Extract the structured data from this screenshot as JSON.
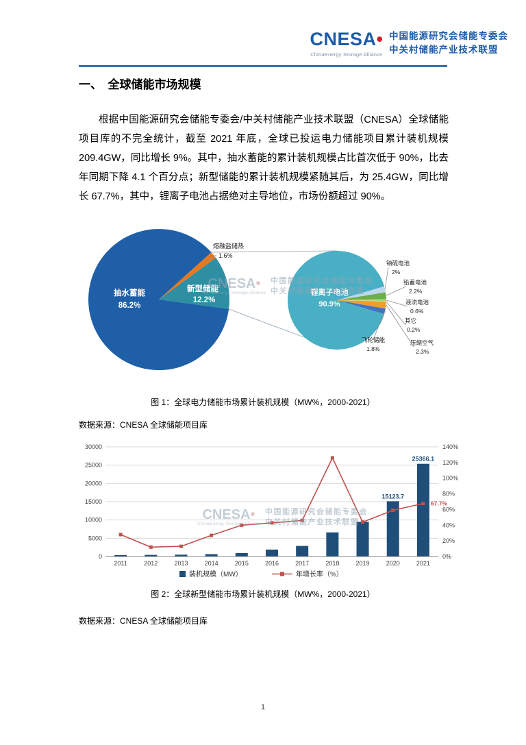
{
  "page": {
    "number": "1"
  },
  "header": {
    "logo_text": "CNESA",
    "logo_dot": "•",
    "logo_subtitle": "ChinaEnergy Storage Alliance",
    "org_line1": "中国能源研究会储能专委会",
    "org_line2": "中关村储能产业技术联盟"
  },
  "watermark": {
    "brand": "CNESA",
    "dot": "•",
    "sub": "ChinaEnergy Storage Alliance",
    "line1": "中国能源研究会储能专委会",
    "line2": "中关村储能产业技术联盟"
  },
  "section": {
    "heading": "一、　全球储能市场规模"
  },
  "body": {
    "paragraph": "根据中国能源研究会储能专委会/中关村储能产业技术联盟（CNESA）全球储能项目库的不完全统计，截至 2021 年底，全球已投运电力储能项目累计装机规模 209.4GW，同比增长 9%。其中，抽水蓄能的累计装机规模占比首次低于 90%，比去年同期下降 4.1 个百分点；新型储能的累计装机规模紧随其后，为 25.4GW，同比增长 67.7%，其中，锂离子电池占据绝对主导地位，市场份额超过 90%。"
  },
  "figure1": {
    "caption": "图 1：全球电力储能市场累计装机规模（MW%，2000-2021）",
    "source": "数据来源：CNESA 全球储能项目库"
  },
  "figure2": {
    "caption": "图 2：全球新型储能市场累计装机规模（MW%，2000-2021）",
    "source": "数据来源：CNESA 全球储能项目库"
  },
  "chart_data": [
    {
      "type": "pie",
      "variant": "pie-of-pie",
      "title": "全球电力储能市场累计装机规模（MW%，2000-2021）",
      "main_pie": [
        {
          "label": "熔融盐储热",
          "pct": "1.6%",
          "value": 1.6,
          "color": "#e8781e"
        },
        {
          "label": "新型储能",
          "pct": "12.2%",
          "value": 12.2,
          "color": "#2e8fa3"
        },
        {
          "label": "抽水蓄能",
          "pct": "86.2%",
          "value": 86.2,
          "color": "#1f5fa8"
        }
      ],
      "detail_pie": [
        {
          "label": "钠硫电池",
          "pct": "2%",
          "value": 2,
          "color": "#bdd7ee"
        },
        {
          "label": "铅蓄电池",
          "pct": "2.2%",
          "value": 2.2,
          "color": "#70ad47"
        },
        {
          "label": "液流电池",
          "pct": "0.6%",
          "value": 0.6,
          "color": "#a9d08e"
        },
        {
          "label": "其它",
          "pct": "0.2%",
          "value": 0.2,
          "color": "#ffd966"
        },
        {
          "label": "压缩空气",
          "pct": "2.3%",
          "value": 2.3,
          "color": "#ed9f2d"
        },
        {
          "label": "飞轮储能",
          "pct": "1.8%",
          "value": 1.8,
          "color": "#4472c4"
        },
        {
          "label": "锂离子电池",
          "pct": "90.9%",
          "value": 90.9,
          "color": "#49afc4"
        }
      ]
    },
    {
      "type": "bar",
      "variant": "bar-line-combo",
      "title": "全球新型储能市场累计装机规模（MW%，2000-2021）",
      "categories": [
        "2011",
        "2012",
        "2013",
        "2014",
        "2015",
        "2016",
        "2017",
        "2018",
        "2019",
        "2020",
        "2021"
      ],
      "series": [
        {
          "name": "装机规模（MW）",
          "chart": "bar",
          "axis": "left",
          "color": "#1f4e79",
          "values": [
            400,
            450,
            510,
            650,
            950,
            1900,
            2900,
            6600,
            9500,
            15123.7,
            25366.1
          ]
        },
        {
          "name": "年增长率（%）",
          "chart": "line",
          "axis": "right",
          "color": "#c0504d",
          "values": [
            28,
            12,
            13,
            27,
            40,
            43,
            46,
            126,
            44,
            59,
            67.7
          ]
        }
      ],
      "left_axis": {
        "min": 0,
        "max": 30000,
        "step": 5000,
        "ticks": [
          "0",
          "5000",
          "10000",
          "15000",
          "20000",
          "25000",
          "30000"
        ]
      },
      "right_axis": {
        "min": 0,
        "max": 140,
        "step": 20,
        "ticks": [
          "0%",
          "20%",
          "40%",
          "60%",
          "80%",
          "100%",
          "120%",
          "140%"
        ]
      },
      "annotations": [
        {
          "text": "15123.7",
          "category": "2020",
          "target": "bar",
          "color": "#1f4e79"
        },
        {
          "text": "25366.1",
          "category": "2021",
          "target": "bar",
          "color": "#1f4e79"
        },
        {
          "text": "67.7%",
          "category": "2021",
          "target": "line",
          "color": "#c0504d"
        }
      ],
      "legend": [
        "装机规模（MW）",
        "年增长率（%）"
      ]
    }
  ]
}
